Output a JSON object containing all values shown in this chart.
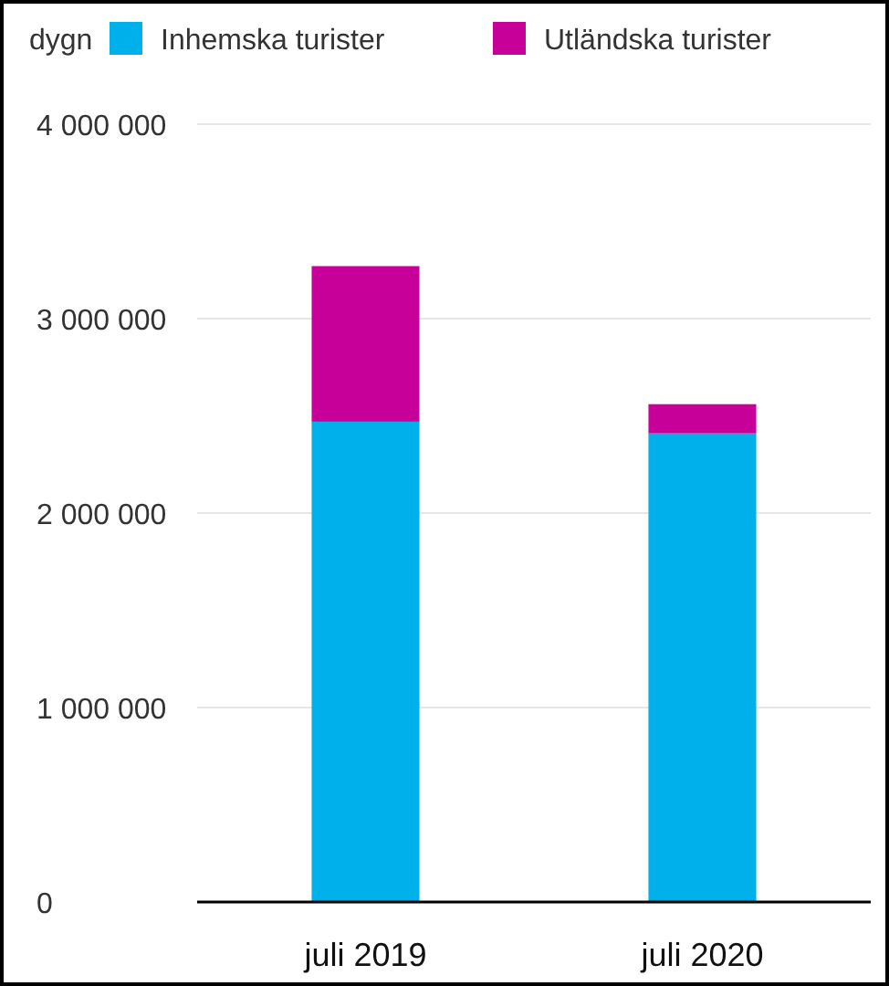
{
  "chart_data": {
    "type": "bar",
    "ylabel": "dygn",
    "categories": [
      "juli 2019",
      "juli 2020"
    ],
    "stacked": true,
    "series": [
      {
        "name": "Inhemska turister",
        "color": "#00b0ea",
        "values": [
          2470000,
          2410000
        ]
      },
      {
        "name": "Utländska turister",
        "color": "#c8009a",
        "values": [
          800000,
          150000
        ]
      }
    ],
    "ylim": [
      0,
      4000000
    ],
    "yticks": [
      {
        "value": 0,
        "label": "0"
      },
      {
        "value": 1000000,
        "label": "1 000 000"
      },
      {
        "value": 2000000,
        "label": "2 000 000"
      },
      {
        "value": 3000000,
        "label": "3 000 000"
      },
      {
        "value": 4000000,
        "label": "4 000 000"
      }
    ],
    "grid": "y",
    "legend": "top"
  }
}
